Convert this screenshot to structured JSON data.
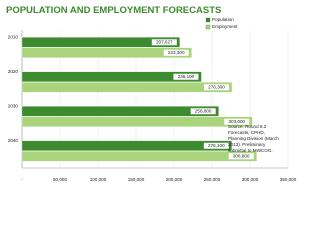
{
  "chart_data": {
    "type": "barh",
    "title": "POPULATION AND EMPLOYMENT FORECASTS",
    "categories": [
      "2010",
      "2020",
      "2030",
      "2040"
    ],
    "series": [
      {
        "name": "Population",
        "color": "#3d8b2f",
        "values": [
          207627,
          236100,
          258800,
          276100
        ],
        "value_labels": [
          "207,627",
          "236,100",
          "258,800",
          "276,100"
        ]
      },
      {
        "name": "Employment",
        "color": "#a9d47c",
        "values": [
          223300,
          276300,
          303000,
          308800
        ],
        "value_labels": [
          "223,300",
          "276,300",
          "303,000",
          "308,800"
        ]
      }
    ],
    "xlim": [
      0,
      350000
    ],
    "xticks": [
      {
        "value": 0,
        "label": "-"
      },
      {
        "value": 50000,
        "label": "50,000"
      },
      {
        "value": 100000,
        "label": "100,000"
      },
      {
        "value": 150000,
        "label": "150,000"
      },
      {
        "value": 200000,
        "label": "200,000"
      },
      {
        "value": 250000,
        "label": "250,000"
      },
      {
        "value": 300000,
        "label": "300,000"
      },
      {
        "value": 350000,
        "label": "350,000"
      }
    ],
    "grid": true,
    "legend": "top-right",
    "annotation": [
      "Source:  Round 8.2",
      "Forecasts, CPHD,",
      "Planning Division (March",
      "2013).  Preliminary",
      "submittal to MWCOG."
    ]
  }
}
